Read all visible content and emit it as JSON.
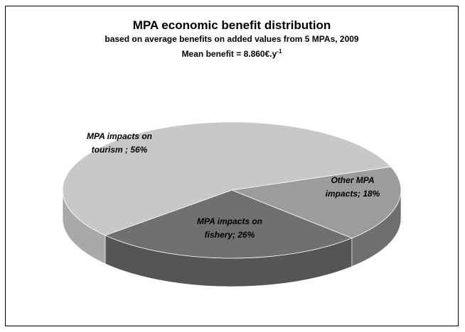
{
  "chart_data": {
    "type": "pie",
    "variant": "3d",
    "title": "MPA economic benefit distribution",
    "subtitle": "based on average benefits on added values from 5 MPAs, 2009",
    "note": {
      "prefix": "Mean benefit = 8.860€.y",
      "superscript": "-1"
    },
    "slices": [
      {
        "label_line1": "MPA impacts on",
        "label_line2": "tourism ; 56%",
        "value": 56,
        "color": "#c8c8c8",
        "side_color": "#a9a9a9"
      },
      {
        "label_line1": "Other MPA",
        "label_line2": "impacts; 18%",
        "value": 18,
        "color": "#9c9c9c",
        "side_color": "#6f6f6f"
      },
      {
        "label_line1": "MPA impacts on",
        "label_line2": "fishery; 26%",
        "value": 26,
        "color": "#707070",
        "side_color": "#555555"
      }
    ],
    "legend": "none",
    "grid": false
  }
}
